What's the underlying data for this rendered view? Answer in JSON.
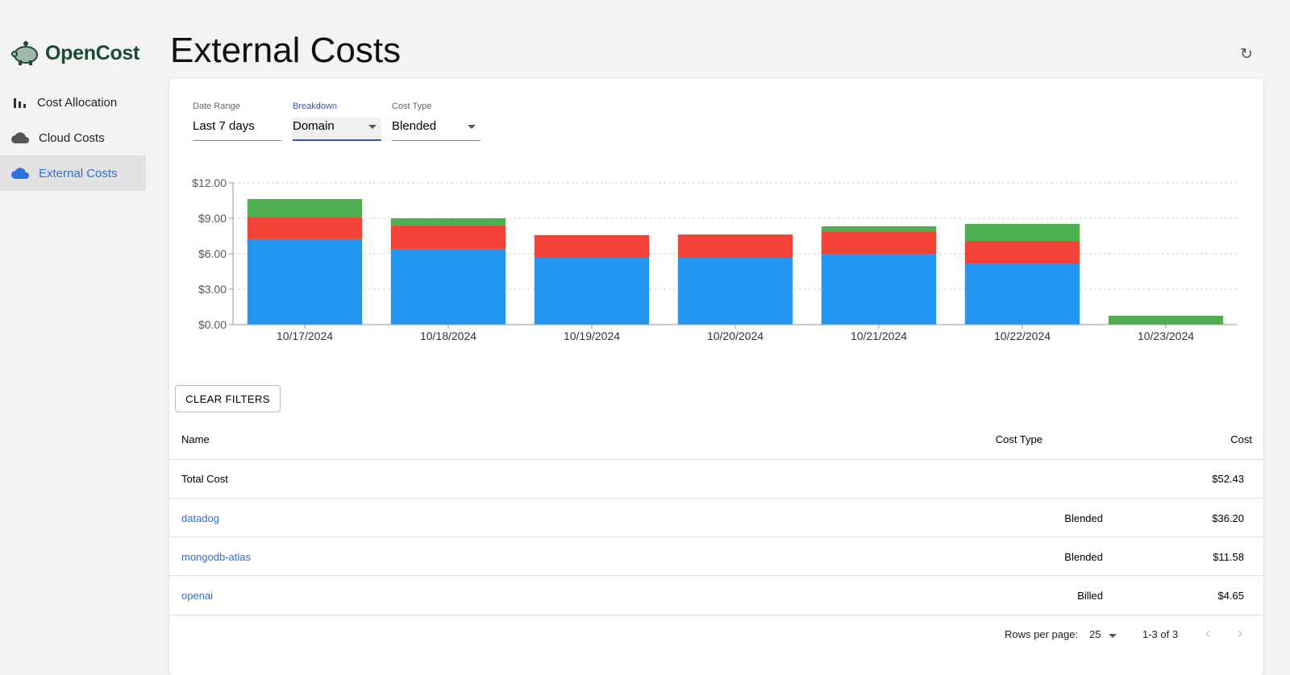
{
  "brand": {
    "name": "OpenCost"
  },
  "sidebar": {
    "items": [
      {
        "label": "Cost Allocation",
        "icon": "bar-chart-icon"
      },
      {
        "label": "Cloud Costs",
        "icon": "cloud-icon"
      },
      {
        "label": "External Costs",
        "icon": "cloud-icon",
        "active": true
      }
    ]
  },
  "header": {
    "title": "External Costs",
    "refresh_icon": "refresh-icon"
  },
  "filters": {
    "date_range": {
      "label": "Date Range",
      "value": "Last 7 days"
    },
    "breakdown": {
      "label": "Breakdown",
      "value": "Domain"
    },
    "cost_type": {
      "label": "Cost Type",
      "value": "Blended"
    }
  },
  "chart_data": {
    "type": "bar",
    "stacked": true,
    "categories": [
      "10/17/2024",
      "10/18/2024",
      "10/19/2024",
      "10/20/2024",
      "10/21/2024",
      "10/22/2024",
      "10/23/2024"
    ],
    "series": [
      {
        "color": "#2196f3",
        "values": [
          7.23,
          6.41,
          5.66,
          5.66,
          6.0,
          5.18,
          0
        ]
      },
      {
        "color": "#f44336",
        "values": [
          1.9,
          1.97,
          1.91,
          1.97,
          1.9,
          1.91,
          0
        ]
      },
      {
        "color": "#4caf50",
        "values": [
          1.5,
          0.62,
          0,
          0,
          0.42,
          1.43,
          0.75
        ]
      }
    ],
    "yticks": [
      "$0.00",
      "$3.00",
      "$6.00",
      "$9.00",
      "$12.00"
    ],
    "ylim": [
      0,
      12
    ],
    "grid": true
  },
  "table": {
    "clear_filters": "CLEAR FILTERS",
    "headers": {
      "name": "Name",
      "cost_type": "Cost Type",
      "cost": "Cost"
    },
    "total": {
      "name": "Total Cost",
      "cost": "$52.43"
    },
    "rows": [
      {
        "name": "datadog",
        "cost_type": "Blended",
        "cost": "$36.20"
      },
      {
        "name": "mongodb-atlas",
        "cost_type": "Blended",
        "cost": "$11.58"
      },
      {
        "name": "openai",
        "cost_type": "Billed",
        "cost": "$4.65"
      }
    ],
    "pagination": {
      "rows_per_page_label": "Rows per page:",
      "rows_per_page": "25",
      "range": "1-3 of 3"
    }
  }
}
